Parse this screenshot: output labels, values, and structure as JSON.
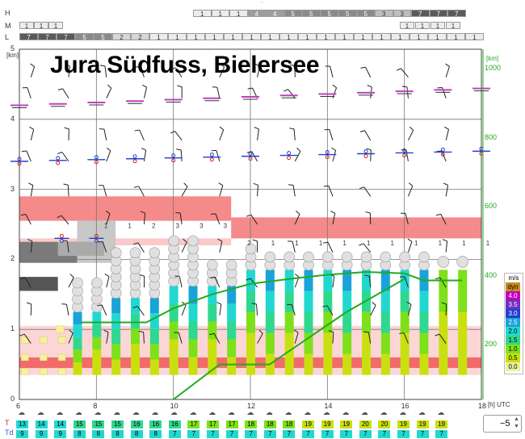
{
  "title": "Jura Südfuss, Bielersee",
  "cloud_rows": {
    "labels": [
      "H",
      "M",
      "L"
    ],
    "H": [
      "1",
      "1",
      "1",
      "4",
      "4",
      "5",
      "5",
      "5",
      "5",
      "5",
      "3",
      "3",
      "7",
      "7",
      "7"
    ],
    "M": [
      "1",
      "1",
      "1",
      "1",
      "1",
      "1",
      "1"
    ],
    "L": [
      "7",
      "7",
      "7",
      "5",
      "5",
      "2",
      "2",
      "1",
      "1",
      "1",
      "1",
      "1",
      "1",
      "1",
      "1",
      "1",
      "1",
      "1",
      "1",
      "1",
      "1",
      "1",
      "1",
      "1",
      "1"
    ]
  },
  "y_axis_left": {
    "unit": "[km]",
    "ticks": [
      "5",
      "4",
      "3",
      "2",
      "1",
      "0"
    ]
  },
  "y_axis_right": {
    "unit": "[km]",
    "ticks": [
      "1000",
      "800",
      "600",
      "400",
      "200"
    ]
  },
  "x_axis": {
    "ticks": [
      "6",
      "8",
      "10",
      "12",
      "14",
      "16",
      "18"
    ],
    "unit": "[h] UTC"
  },
  "column_labels": [
    "1",
    "1",
    "2",
    "3",
    "3",
    "3",
    "2",
    "1",
    "1",
    "1",
    "1",
    "1",
    "1",
    "1",
    "1",
    "1",
    "1"
  ],
  "legend": {
    "unit": "m/s",
    "items": [
      {
        "label": "dyn",
        "color": "#c98a1c"
      },
      {
        "label": "4.0",
        "color": "#c000c0"
      },
      {
        "label": "3.5",
        "color": "#7030c0"
      },
      {
        "label": "3.0",
        "color": "#1e40d0"
      },
      {
        "label": "2.5",
        "color": "#1aa3d8"
      },
      {
        "label": "2.0",
        "color": "#21d8d0"
      },
      {
        "label": "1.5",
        "color": "#2fd88f"
      },
      {
        "label": "1.0",
        "color": "#7ee01a"
      },
      {
        "label": "0.5",
        "color": "#c8e010"
      },
      {
        "label": "0.0",
        "color": "#f0f09a"
      }
    ]
  },
  "bottom_rows": {
    "T_label": "T",
    "Td_label": "Td",
    "T": [
      "13",
      "14",
      "14",
      "15",
      "15",
      "15",
      "16",
      "16",
      "16",
      "17",
      "17",
      "17",
      "18",
      "18",
      "18",
      "19",
      "19",
      "19",
      "20",
      "20",
      "19",
      "19",
      "19"
    ],
    "Td": [
      "9",
      "9",
      "9",
      "8",
      "8",
      "8",
      "8",
      "8",
      "7",
      "7",
      "7",
      "7",
      "7",
      "7",
      "7",
      "7",
      "7",
      "7",
      "7",
      "7",
      "7",
      "7",
      "7"
    ]
  },
  "spinner": {
    "value": "−5"
  },
  "colors": {
    "grid": "#555555",
    "green": "#22aa22",
    "salmon": "#f58a8a"
  }
}
